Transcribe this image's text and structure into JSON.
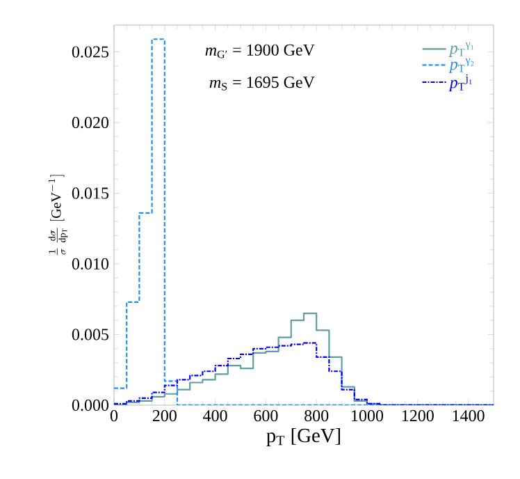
{
  "chart_data": {
    "type": "histogram",
    "xlabel": "p$_{T}$ [GeV]",
    "ylabel": "\\frac{1}{\\sigma}\\,\\frac{\\mathrm{d}\\sigma}{\\mathrm{d}\\mathrm{p}_\\mathrm{T}}\\;[\\mathrm{GeV}^{-1}]",
    "annotations": [
      "*m*$_{G′}$ = 1900 GeV",
      "*m*$_{S}$ = 1695 GeV"
    ],
    "bins": [
      0,
      50,
      100,
      150,
      200,
      250,
      300,
      350,
      400,
      450,
      500,
      550,
      600,
      650,
      700,
      750,
      800,
      850,
      900,
      950,
      1000,
      1050,
      1100,
      1150,
      1200,
      1250,
      1300,
      1350,
      1400,
      1450,
      1500
    ],
    "series": [
      {
        "name": "*p*$_{T}$$^{γ₁}$",
        "color": "#5f9ea0",
        "line_style": "solid",
        "values": [
          0,
          0.0002,
          0.0003,
          0.0006,
          0.0008,
          0.0011,
          0.0016,
          0.0018,
          0.0022,
          0.0028,
          0.0026,
          0.0037,
          0.0038,
          0.0048,
          0.006,
          0.0065,
          0.0053,
          0.0034,
          0.0013,
          0.0003,
          0.0001,
          0,
          0,
          0,
          0,
          0,
          0,
          0,
          0,
          0
        ]
      },
      {
        "name": "*p*$_{T}$$^{γ₂}$",
        "color": "#1e90ff",
        "line_style": "dashed",
        "values": [
          0.0012,
          0.0073,
          0.0136,
          0.0259,
          0.0017,
          0,
          0,
          0,
          0,
          0,
          0,
          0,
          0,
          0,
          0,
          0,
          0,
          0,
          0,
          0,
          0,
          0,
          0,
          0,
          0,
          0,
          0,
          0,
          0,
          0
        ]
      },
      {
        "name": "*p*$_{T}$$^{j₁}$",
        "color": "#0000ff",
        "line_style": "dashdot",
        "values": [
          0.0001,
          0.0003,
          0.0005,
          0.0009,
          0.0014,
          0.0018,
          0.0021,
          0.0024,
          0.0028,
          0.0033,
          0.0036,
          0.004,
          0.0041,
          0.0042,
          0.0043,
          0.0044,
          0.0034,
          0.0024,
          0.0011,
          0.0004,
          0.0001,
          0,
          0,
          0,
          0,
          0,
          0,
          0,
          0,
          0
        ]
      }
    ],
    "xlim": [
      0,
      1500
    ],
    "ylim": [
      0,
      0.0269
    ],
    "xticks": [
      0,
      200,
      400,
      600,
      800,
      1000,
      1200,
      1400
    ],
    "yticks": [
      {
        "value": 0,
        "label": "0.000"
      },
      {
        "value": 0.005,
        "label": "0.005"
      },
      {
        "value": 0.01,
        "label": "0.010"
      },
      {
        "value": 0.015,
        "label": "0.015"
      },
      {
        "value": 0.02,
        "label": "0.020"
      },
      {
        "value": 0.025,
        "label": "0.025"
      }
    ],
    "legend": "top right",
    "grid": false
  }
}
